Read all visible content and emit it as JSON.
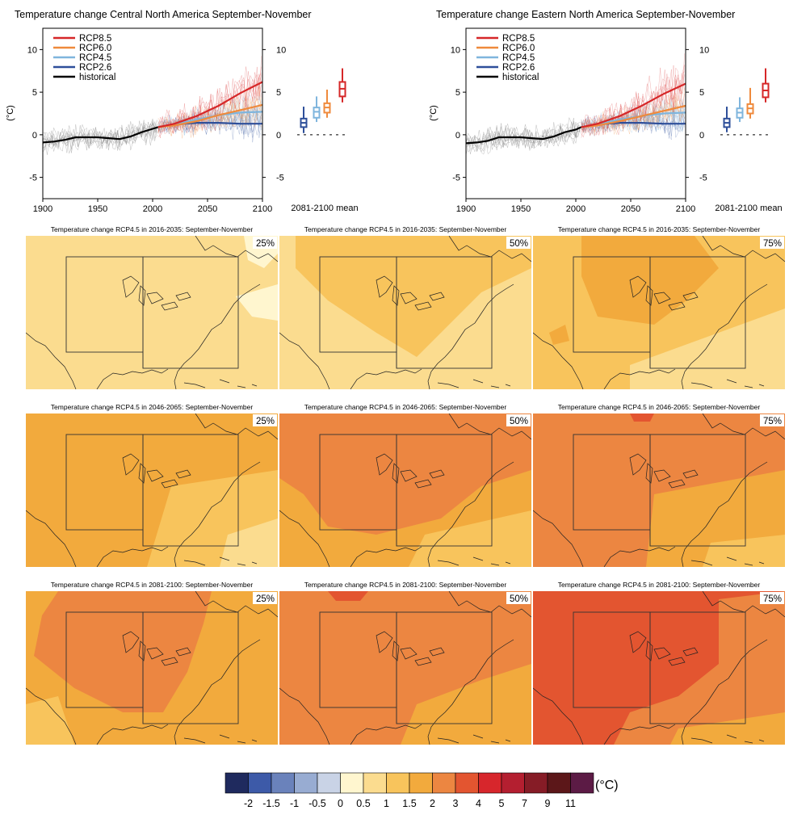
{
  "colors": {
    "rcp85": "#d62728",
    "rcp60": "#ef8a3c",
    "rcp45": "#7fb5dd",
    "rcp26": "#2e4f9a",
    "historical": "#000000",
    "ensemble_gray": "#8c8c8c"
  },
  "timeseries_panels": [
    {
      "title": "Temperature change Central North America September-November",
      "ylabel": "(°C)",
      "mean_label": "2081-2100 mean"
    },
    {
      "title": "Temperature change Eastern North America September-November",
      "ylabel": "(°C)",
      "mean_label": "2081-2100 mean"
    }
  ],
  "map_panels": [
    {
      "title": "Temperature change RCP4.5 in 2016-2035: September-November",
      "pct": "25%"
    },
    {
      "title": "Temperature change RCP4.5 in 2016-2035: September-November",
      "pct": "50%"
    },
    {
      "title": "Temperature change RCP4.5 in 2016-2035: September-November",
      "pct": "75%"
    },
    {
      "title": "Temperature change RCP4.5 in 2046-2065: September-November",
      "pct": "25%"
    },
    {
      "title": "Temperature change RCP4.5 in 2046-2065: September-November",
      "pct": "50%"
    },
    {
      "title": "Temperature change RCP4.5 in 2046-2065: September-November",
      "pct": "75%"
    },
    {
      "title": "Temperature change RCP4.5 in 2081-2100: September-November",
      "pct": "25%"
    },
    {
      "title": "Temperature change RCP4.5 in 2081-2100: September-November",
      "pct": "50%"
    },
    {
      "title": "Temperature change RCP4.5 in 2081-2100: September-November",
      "pct": "75%"
    }
  ],
  "colorbar": {
    "unit": "(°C)",
    "colors": [
      "#1f2a5e",
      "#3d5aa8",
      "#6a82bb",
      "#98acd2",
      "#c9d3e6",
      "#fff6cf",
      "#fbdc8f",
      "#f8c45c",
      "#f2aa3d",
      "#ec8641",
      "#e35530",
      "#d7262c",
      "#b41f30",
      "#861c26",
      "#5c1719",
      "#5c1b45"
    ],
    "labels": [
      "-2",
      "-1.5",
      "-1",
      "-0.5",
      "0",
      "0.5",
      "1",
      "1.5",
      "2",
      "3",
      "4",
      "5",
      "7",
      "9",
      "11"
    ]
  },
  "chart_data": [
    {
      "type": "line",
      "title": "Temperature change Central North America September-November",
      "ylabel": "(°C)",
      "xlim": [
        1900,
        2100
      ],
      "ylim": [
        -7.5,
        12.5
      ],
      "xticks": [
        1900,
        1950,
        2000,
        2050,
        2100
      ],
      "yticks": [
        -5,
        0,
        5,
        10
      ],
      "legend_position": "top-left",
      "series": [
        {
          "name": "RCP8.5",
          "x": [
            2005,
            2020,
            2040,
            2060,
            2080,
            2100
          ],
          "y": [
            0.9,
            1.3,
            2.2,
            3.4,
            4.9,
            6.2
          ]
        },
        {
          "name": "RCP6.0",
          "x": [
            2005,
            2020,
            2040,
            2060,
            2080,
            2100
          ],
          "y": [
            0.9,
            1.1,
            1.6,
            2.3,
            2.9,
            3.5
          ]
        },
        {
          "name": "RCP4.5",
          "x": [
            2005,
            2020,
            2040,
            2060,
            2080,
            2100
          ],
          "y": [
            0.9,
            1.2,
            1.8,
            2.3,
            2.6,
            2.7
          ]
        },
        {
          "name": "RCP2.6",
          "x": [
            2005,
            2020,
            2040,
            2060,
            2080,
            2100
          ],
          "y": [
            0.9,
            1.2,
            1.4,
            1.4,
            1.3,
            1.3
          ]
        },
        {
          "name": "historical",
          "x": [
            1900,
            1910,
            1920,
            1930,
            1940,
            1950,
            1960,
            1970,
            1980,
            1990,
            2000,
            2005
          ],
          "y": [
            -0.9,
            -0.8,
            -0.6,
            -0.3,
            -0.3,
            -0.3,
            -0.4,
            -0.5,
            -0.2,
            0.3,
            0.7,
            0.9
          ]
        }
      ],
      "boxplots_2081_2100": [
        {
          "name": "RCP2.6",
          "whisker_low": 0.2,
          "q1": 0.9,
          "median": 1.4,
          "q3": 1.9,
          "whisker_high": 3.3
        },
        {
          "name": "RCP4.5",
          "whisker_low": 1.5,
          "q1": 2.0,
          "median": 2.7,
          "q3": 3.2,
          "whisker_high": 4.5
        },
        {
          "name": "RCP6.0",
          "whisker_low": 2.0,
          "q1": 2.6,
          "median": 3.2,
          "q3": 3.7,
          "whisker_high": 5.3
        },
        {
          "name": "RCP8.5",
          "whisker_low": 3.8,
          "q1": 4.5,
          "median": 5.4,
          "q3": 6.2,
          "whisker_high": 7.8
        }
      ]
    },
    {
      "type": "line",
      "title": "Temperature change Eastern North America September-November",
      "ylabel": "(°C)",
      "xlim": [
        1900,
        2100
      ],
      "ylim": [
        -7.5,
        12.5
      ],
      "xticks": [
        1900,
        1950,
        2000,
        2050,
        2100
      ],
      "yticks": [
        -5,
        0,
        5,
        10
      ],
      "legend_position": "top-left",
      "series": [
        {
          "name": "RCP8.5",
          "x": [
            2005,
            2020,
            2040,
            2060,
            2080,
            2100
          ],
          "y": [
            0.9,
            1.3,
            2.2,
            3.4,
            4.8,
            6.0
          ]
        },
        {
          "name": "RCP6.0",
          "x": [
            2005,
            2020,
            2040,
            2060,
            2080,
            2100
          ],
          "y": [
            0.9,
            1.1,
            1.6,
            2.2,
            2.8,
            3.4
          ]
        },
        {
          "name": "RCP4.5",
          "x": [
            2005,
            2020,
            2040,
            2060,
            2080,
            2100
          ],
          "y": [
            0.9,
            1.2,
            1.8,
            2.2,
            2.5,
            2.6
          ]
        },
        {
          "name": "RCP2.6",
          "x": [
            2005,
            2020,
            2040,
            2060,
            2080,
            2100
          ],
          "y": [
            0.9,
            1.2,
            1.4,
            1.4,
            1.3,
            1.3
          ]
        },
        {
          "name": "historical",
          "x": [
            1900,
            1910,
            1920,
            1930,
            1940,
            1950,
            1960,
            1970,
            1980,
            1990,
            2000,
            2005
          ],
          "y": [
            -1.0,
            -0.9,
            -0.7,
            -0.3,
            -0.3,
            -0.3,
            -0.4,
            -0.5,
            -0.2,
            0.3,
            0.6,
            0.9
          ]
        }
      ],
      "boxplots_2081_2100": [
        {
          "name": "RCP2.6",
          "whisker_low": 0.3,
          "q1": 0.9,
          "median": 1.4,
          "q3": 1.9,
          "whisker_high": 3.3
        },
        {
          "name": "RCP4.5",
          "whisker_low": 1.5,
          "q1": 2.0,
          "median": 2.6,
          "q3": 3.1,
          "whisker_high": 4.4
        },
        {
          "name": "RCP6.0",
          "whisker_low": 1.9,
          "q1": 2.5,
          "median": 3.1,
          "q3": 3.6,
          "whisker_high": 5.5
        },
        {
          "name": "RCP8.5",
          "whisker_low": 3.8,
          "q1": 4.4,
          "median": 5.2,
          "q3": 6.0,
          "whisker_high": 7.8
        }
      ]
    }
  ]
}
